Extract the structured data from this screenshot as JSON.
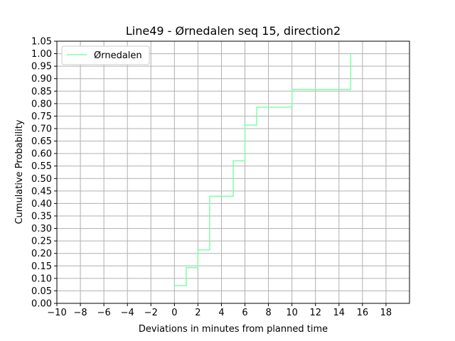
{
  "chart_data": {
    "type": "line",
    "title": "Line49 - Ørnedalen seq 15, direction2",
    "xlabel": "Deviations in minutes from planned time",
    "ylabel": "Cumulative Probability",
    "xlim": [
      -10,
      20
    ],
    "ylim": [
      0,
      1.05
    ],
    "xticks": [
      "−10",
      "−8",
      "−6",
      "−4",
      "−2",
      "0",
      "2",
      "4",
      "6",
      "8",
      "10",
      "12",
      "14",
      "16",
      "18"
    ],
    "yticks": [
      "0.00",
      "0.05",
      "0.10",
      "0.15",
      "0.20",
      "0.25",
      "0.30",
      "0.35",
      "0.40",
      "0.45",
      "0.50",
      "0.55",
      "0.60",
      "0.65",
      "0.70",
      "0.75",
      "0.80",
      "0.85",
      "0.90",
      "0.95",
      "1.00",
      "1.05"
    ],
    "grid": true,
    "legend_position": "upper-left",
    "series": [
      {
        "name": "Ørnedalen",
        "color": "#7fffaa",
        "step": "post",
        "x": [
          0,
          1,
          2,
          3,
          5,
          6,
          7,
          10,
          15
        ],
        "y": [
          0.071,
          0.143,
          0.214,
          0.429,
          0.571,
          0.714,
          0.786,
          0.857,
          0.929
        ]
      }
    ],
    "final_point": {
      "x": 15,
      "y": 1.0
    }
  }
}
